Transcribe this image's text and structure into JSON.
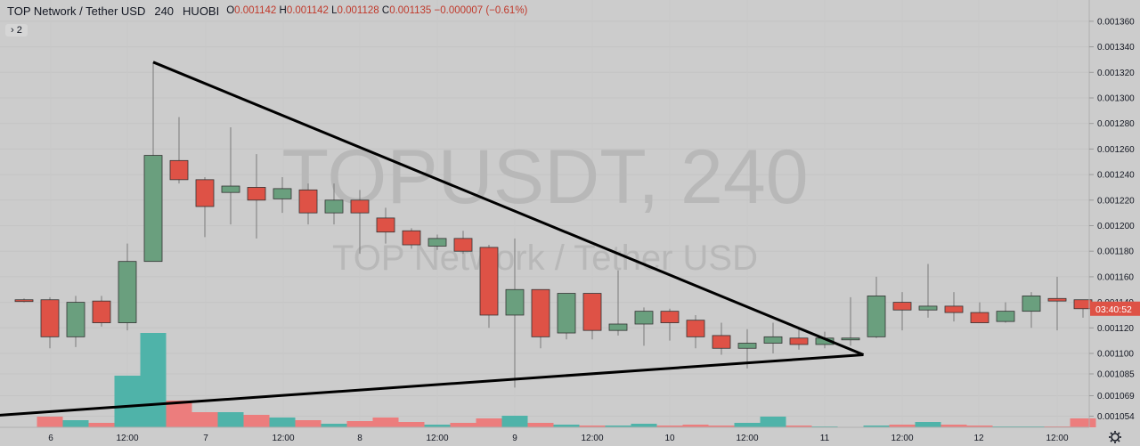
{
  "header": {
    "symbol": "TOP Network / Tether USD",
    "timeframe": "240",
    "exchange": "HUOBI",
    "o_label": "O",
    "o_value": "0.001142",
    "h_label": "H",
    "h_value": "0.001142",
    "l_label": "L",
    "l_value": "0.001128",
    "c_label": "C",
    "c_value": "0.001135",
    "change": "−0.000007 (−0.61%)",
    "indicator_toggle": "› 2"
  },
  "watermark": {
    "ticker": "TOPUSDT, 240",
    "name": "TOP Network / Tether USD"
  },
  "colors": {
    "up": "#6a9f7e",
    "down": "#de5246",
    "vol_up": "#4fb3a9",
    "vol_down": "#ec7d7d",
    "bg": "#cccccc",
    "price_tag": "#de5246"
  },
  "chart_data": {
    "type": "candlestick",
    "price_axis": {
      "ylim": [
        0.00104,
        0.00136
      ],
      "ticks": [
        "0.001360",
        "0.001340",
        "0.001320",
        "0.001300",
        "0.001280",
        "0.001260",
        "0.001240",
        "0.001220",
        "0.001200",
        "0.001180",
        "0.001160",
        "0.001140",
        "0.001120",
        "0.001100",
        "0.001085",
        "0.001069",
        "0.001054"
      ]
    },
    "current_price_tag": "03:40:52",
    "time_axis_labels": [
      "6",
      "12:00",
      "7",
      "12:00",
      "8",
      "12:00",
      "9",
      "12:00",
      "10",
      "12:00",
      "11",
      "12:00",
      "12",
      "12:00"
    ],
    "candles": [
      {
        "o": 0.001142,
        "h": 0.001143,
        "l": 0.00114,
        "c": 0.001141,
        "v": 0
      },
      {
        "o": 0.001142,
        "h": 0.001144,
        "l": 0.001104,
        "c": 0.001113,
        "v": 12
      },
      {
        "o": 0.001113,
        "h": 0.001145,
        "l": 0.001105,
        "c": 0.00114,
        "v": 8
      },
      {
        "o": 0.001141,
        "h": 0.001145,
        "l": 0.001121,
        "c": 0.001124,
        "v": 5
      },
      {
        "o": 0.001124,
        "h": 0.001186,
        "l": 0.001118,
        "c": 0.001172,
        "v": 58
      },
      {
        "o": 0.001172,
        "h": 0.001328,
        "l": 0.001172,
        "c": 0.001255,
        "v": 106
      },
      {
        "o": 0.001251,
        "h": 0.001285,
        "l": 0.001233,
        "c": 0.001236,
        "v": 30
      },
      {
        "o": 0.001236,
        "h": 0.001238,
        "l": 0.001191,
        "c": 0.001215,
        "v": 17
      },
      {
        "o": 0.001226,
        "h": 0.001277,
        "l": 0.001201,
        "c": 0.001231,
        "v": 17
      },
      {
        "o": 0.00123,
        "h": 0.001256,
        "l": 0.00119,
        "c": 0.00122,
        "v": 14
      },
      {
        "o": 0.001221,
        "h": 0.001238,
        "l": 0.00121,
        "c": 0.001229,
        "v": 11
      },
      {
        "o": 0.001228,
        "h": 0.001233,
        "l": 0.001201,
        "c": 0.00121,
        "v": 8
      },
      {
        "o": 0.00121,
        "h": 0.001233,
        "l": 0.001201,
        "c": 0.00122,
        "v": 4
      },
      {
        "o": 0.00122,
        "h": 0.001228,
        "l": 0.001178,
        "c": 0.00121,
        "v": 7
      },
      {
        "o": 0.001206,
        "h": 0.001214,
        "l": 0.001186,
        "c": 0.001195,
        "v": 11
      },
      {
        "o": 0.001196,
        "h": 0.001198,
        "l": 0.001182,
        "c": 0.001185,
        "v": 6
      },
      {
        "o": 0.001184,
        "h": 0.001193,
        "l": 0.001181,
        "c": 0.00119,
        "v": 3
      },
      {
        "o": 0.00119,
        "h": 0.001196,
        "l": 0.001178,
        "c": 0.00118,
        "v": 5
      },
      {
        "o": 0.001183,
        "h": 0.001185,
        "l": 0.00112,
        "c": 0.00113,
        "v": 10
      },
      {
        "o": 0.00113,
        "h": 0.00119,
        "l": 0.001075,
        "c": 0.00115,
        "v": 13
      },
      {
        "o": 0.00115,
        "h": 0.00115,
        "l": 0.001104,
        "c": 0.001113,
        "v": 5
      },
      {
        "o": 0.001116,
        "h": 0.001147,
        "l": 0.001111,
        "c": 0.001147,
        "v": 3
      },
      {
        "o": 0.001147,
        "h": 0.001147,
        "l": 0.001111,
        "c": 0.001118,
        "v": 2
      },
      {
        "o": 0.001118,
        "h": 0.001165,
        "l": 0.001114,
        "c": 0.001123,
        "v": 2
      },
      {
        "o": 0.001123,
        "h": 0.001136,
        "l": 0.001106,
        "c": 0.001133,
        "v": 4
      },
      {
        "o": 0.001133,
        "h": 0.001135,
        "l": 0.00111,
        "c": 0.001124,
        "v": 2
      },
      {
        "o": 0.001126,
        "h": 0.00113,
        "l": 0.001104,
        "c": 0.001113,
        "v": 3
      },
      {
        "o": 0.001114,
        "h": 0.001124,
        "l": 0.001099,
        "c": 0.001104,
        "v": 2
      },
      {
        "o": 0.001104,
        "h": 0.001119,
        "l": 0.001089,
        "c": 0.001108,
        "v": 5
      },
      {
        "o": 0.001108,
        "h": 0.001124,
        "l": 0.0011,
        "c": 0.001113,
        "v": 12
      },
      {
        "o": 0.001112,
        "h": 0.001119,
        "l": 0.001103,
        "c": 0.001107,
        "v": 2
      },
      {
        "o": 0.001107,
        "h": 0.001117,
        "l": 0.001104,
        "c": 0.001112,
        "v": 1
      },
      {
        "o": 0.001112,
        "h": 0.001144,
        "l": 0.001106,
        "c": 0.001112,
        "v": 0
      },
      {
        "o": 0.001113,
        "h": 0.00116,
        "l": 0.001112,
        "c": 0.001145,
        "v": 2
      },
      {
        "o": 0.00114,
        "h": 0.001148,
        "l": 0.001118,
        "c": 0.001134,
        "v": 3
      },
      {
        "o": 0.001134,
        "h": 0.00117,
        "l": 0.001128,
        "c": 0.001137,
        "v": 6
      },
      {
        "o": 0.001137,
        "h": 0.001148,
        "l": 0.001125,
        "c": 0.001132,
        "v": 3
      },
      {
        "o": 0.001132,
        "h": 0.00114,
        "l": 0.001124,
        "c": 0.001124,
        "v": 2
      },
      {
        "o": 0.001125,
        "h": 0.00114,
        "l": 0.001124,
        "c": 0.001133,
        "v": 1
      },
      {
        "o": 0.001133,
        "h": 0.001148,
        "l": 0.00112,
        "c": 0.001145,
        "v": 1
      },
      {
        "o": 0.001143,
        "h": 0.00116,
        "l": 0.001118,
        "c": 0.001141,
        "v": 1
      },
      {
        "o": 0.001142,
        "h": 0.001142,
        "l": 0.001128,
        "c": 0.001135,
        "v": 10
      }
    ],
    "triangle_drawing": {
      "apex_top": {
        "candle": 5,
        "price": 0.001328
      },
      "apex_right": {
        "candle": 32.5,
        "price": 0.001099
      },
      "bottom_left": {
        "candle": -1.5,
        "price": 0.001054
      }
    }
  }
}
